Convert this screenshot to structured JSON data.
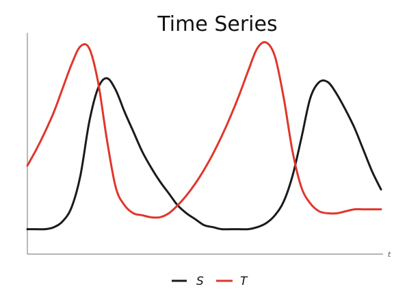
{
  "chart_data": {
    "type": "line",
    "title": "Time Series",
    "xlabel": "t",
    "ylabel": "",
    "grid": false,
    "legend_position": "bottom-center",
    "xlim": [
      0,
      20
    ],
    "ylim": [
      0,
      1
    ],
    "x_ticks": [],
    "y_ticks": [],
    "x": [
      0,
      0.5,
      1,
      1.5,
      2,
      2.5,
      3,
      3.5,
      4,
      4.5,
      5,
      5.5,
      6,
      6.5,
      7,
      7.5,
      8,
      8.5,
      9,
      9.5,
      10,
      10.5,
      11,
      11.5,
      12,
      12.5,
      13,
      13.5,
      14,
      14.5,
      15,
      15.5,
      16,
      16.5,
      17,
      17.5,
      18,
      18.5,
      19,
      19.5,
      20
    ],
    "series": [
      {
        "name": "S",
        "color": "#1a1a1a",
        "values": [
          0.06,
          0.06,
          0.06,
          0.07,
          0.1,
          0.17,
          0.33,
          0.6,
          0.77,
          0.82,
          0.76,
          0.65,
          0.55,
          0.45,
          0.37,
          0.3,
          0.24,
          0.18,
          0.14,
          0.11,
          0.08,
          0.07,
          0.06,
          0.06,
          0.06,
          0.06,
          0.07,
          0.09,
          0.13,
          0.2,
          0.33,
          0.52,
          0.72,
          0.8,
          0.8,
          0.74,
          0.66,
          0.57,
          0.46,
          0.35,
          0.26
        ]
      },
      {
        "name": "T",
        "color": "#e0362b",
        "values": [
          0.38,
          0.46,
          0.55,
          0.65,
          0.77,
          0.89,
          0.98,
          0.97,
          0.8,
          0.51,
          0.27,
          0.18,
          0.14,
          0.13,
          0.12,
          0.12,
          0.14,
          0.18,
          0.23,
          0.29,
          0.36,
          0.44,
          0.53,
          0.63,
          0.74,
          0.86,
          0.97,
          1.0,
          0.93,
          0.72,
          0.45,
          0.27,
          0.19,
          0.15,
          0.14,
          0.14,
          0.15,
          0.16,
          0.16,
          0.16,
          0.16
        ]
      }
    ]
  }
}
